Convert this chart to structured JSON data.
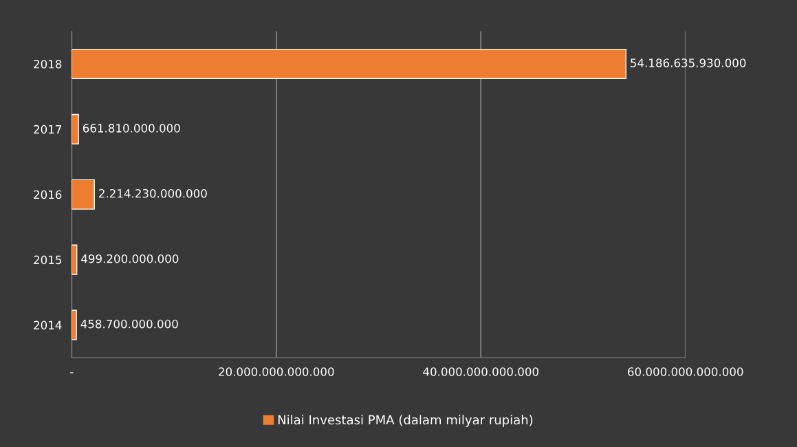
{
  "chart_data": {
    "type": "bar",
    "orientation": "horizontal",
    "categories": [
      "2018",
      "2017",
      "2016",
      "2015",
      "2014"
    ],
    "series": [
      {
        "name": "Nilai Investasi PMA (dalam milyar rupiah)",
        "color": "#ed7d31",
        "values": [
          54186635930000,
          661810000000,
          2214230000000,
          499200000000,
          458700000000
        ]
      }
    ],
    "value_labels": [
      "54.186.635.930.000",
      "661.810.000.000",
      "2.214.230.000.000",
      "499.200.000.000",
      "458.700.000.000"
    ],
    "xlim": [
      0,
      60000000000000
    ],
    "xticks": [
      {
        "value": 0,
        "label": "-"
      },
      {
        "value": 20000000000000,
        "label": "20.000.000.000.000"
      },
      {
        "value": 40000000000000,
        "label": "40.000.000.000.000"
      },
      {
        "value": 60000000000000,
        "label": "60.000.000.000.000"
      }
    ],
    "grid": "x",
    "legend": "bottom"
  }
}
